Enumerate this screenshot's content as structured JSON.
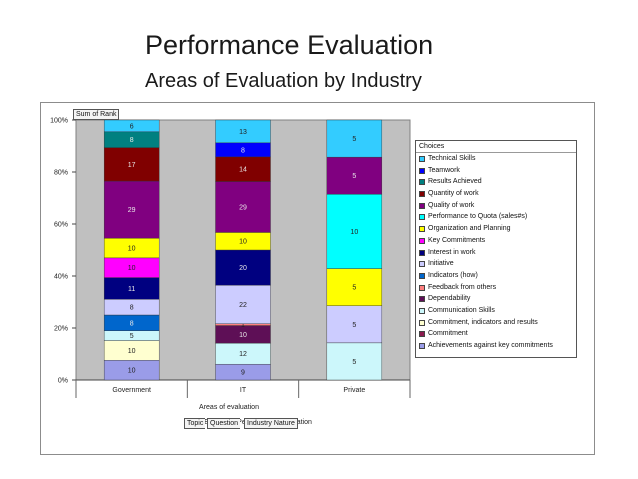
{
  "slide": {
    "title": "Performance Evaluation",
    "subtitle": "Areas of Evaluation by Industry"
  },
  "pivot": {
    "sum_field": "Sum of Rank",
    "row_field": "Areas of evaluation",
    "filter_caption": "Employee Performance Evaluation",
    "page_fields": [
      "Topic",
      "Question",
      "Industry Nature"
    ]
  },
  "chart_data": {
    "type": "bar",
    "stacked": "percent",
    "categories": [
      "Government",
      "IT",
      "Private"
    ],
    "y_ticks": [
      "0%",
      "20%",
      "40%",
      "60%",
      "80%",
      "100%"
    ],
    "ylim": [
      0,
      100
    ],
    "xlabel": "Areas of evaluation",
    "legend_title": "Choices",
    "legend_position": "right",
    "grid": false,
    "series": [
      {
        "name": "Achievements against key commitments",
        "color": "#9a9ce8",
        "values": [
          10,
          9,
          null
        ]
      },
      {
        "name": "Commitment",
        "color": "#8b1a4e",
        "values": [
          null,
          null,
          null
        ]
      },
      {
        "name": "Commitment, indicators and results",
        "color": "#ffffd0",
        "values": [
          10,
          null,
          null
        ]
      },
      {
        "name": "Communication Skills",
        "color": "#ccf7fb",
        "values": [
          5,
          12,
          5
        ]
      },
      {
        "name": "Dependability",
        "color": "#5e0f56",
        "values": [
          null,
          10,
          null
        ]
      },
      {
        "name": "Feedback from others",
        "color": "#ff8080",
        "values": [
          null,
          1,
          null
        ]
      },
      {
        "name": "Indicators (how)",
        "color": "#0066cc",
        "values": [
          8,
          null,
          null
        ]
      },
      {
        "name": "Initiative",
        "color": "#ccccff",
        "values": [
          8,
          22,
          5
        ]
      },
      {
        "name": "Interest in work",
        "color": "#000080",
        "values": [
          11,
          20,
          null
        ]
      },
      {
        "name": "Key Commitments",
        "color": "#ff00ff",
        "values": [
          10,
          null,
          null
        ]
      },
      {
        "name": "Organization and Planning",
        "color": "#ffff00",
        "values": [
          10,
          10,
          5
        ]
      },
      {
        "name": "Performance to Quota (sales#s)",
        "color": "#00ffff",
        "values": [
          null,
          null,
          10
        ]
      },
      {
        "name": "Quality of work",
        "color": "#800080",
        "values": [
          29,
          29,
          5
        ]
      },
      {
        "name": "Quantity of work",
        "color": "#800000",
        "values": [
          17,
          14,
          null
        ]
      },
      {
        "name": "Results Achieved",
        "color": "#008080",
        "values": [
          8,
          null,
          null
        ]
      },
      {
        "name": "Teamwork",
        "color": "#0000ff",
        "values": [
          null,
          8,
          null
        ]
      },
      {
        "name": "Technical Skills",
        "color": "#33ccff",
        "values": [
          6,
          13,
          5
        ]
      }
    ]
  }
}
